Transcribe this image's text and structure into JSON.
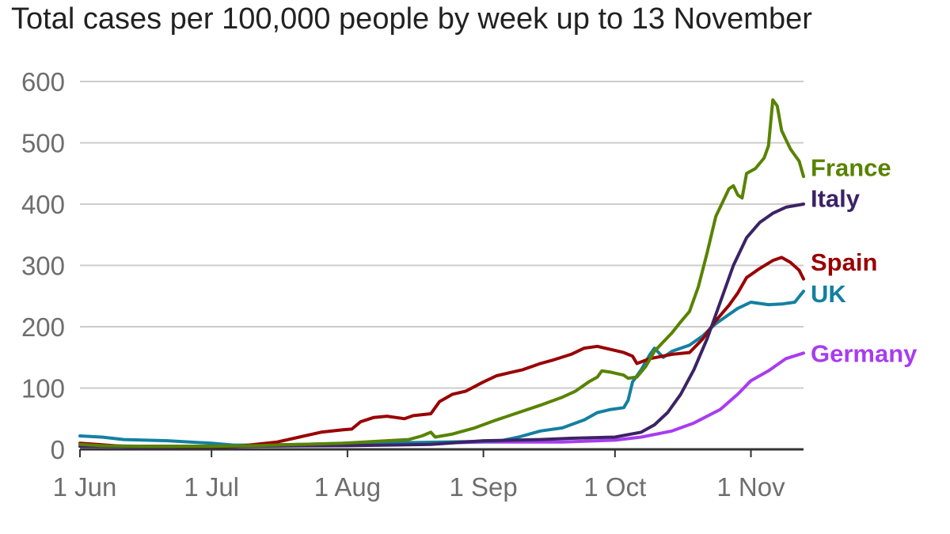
{
  "chart_data": {
    "type": "line",
    "title": "Total cases per 100,000 people by week up to 13 November",
    "xlabel": "",
    "ylabel": "",
    "ylim": [
      0,
      600
    ],
    "yticks": [
      0,
      100,
      200,
      300,
      400,
      500,
      600
    ],
    "grid": true,
    "x_unit": "day index from 1 Jun (0 = 1 Jun)",
    "xlim": [
      0,
      165
    ],
    "xticks": [
      {
        "day": 0,
        "label": "1 Jun"
      },
      {
        "day": 30,
        "label": "1 Jul"
      },
      {
        "day": 61,
        "label": "1 Aug"
      },
      {
        "day": 92,
        "label": "1 Sep"
      },
      {
        "day": 122,
        "label": "1 Oct"
      },
      {
        "day": 153,
        "label": "1 Nov"
      }
    ],
    "series": [
      {
        "name": "Germany",
        "color": "#a83cf0",
        "points": [
          [
            0,
            5
          ],
          [
            30,
            4
          ],
          [
            61,
            7
          ],
          [
            92,
            12
          ],
          [
            110,
            12
          ],
          [
            122,
            15
          ],
          [
            128,
            20
          ],
          [
            135,
            30
          ],
          [
            140,
            43
          ],
          [
            146,
            65
          ],
          [
            150,
            90
          ],
          [
            153,
            112
          ],
          [
            157,
            128
          ],
          [
            161,
            148
          ],
          [
            165,
            157
          ]
        ]
      },
      {
        "name": "UK",
        "color": "#1380a1",
        "points": [
          [
            0,
            22
          ],
          [
            5,
            20
          ],
          [
            10,
            16
          ],
          [
            20,
            14
          ],
          [
            30,
            10
          ],
          [
            35,
            7
          ],
          [
            40,
            7
          ],
          [
            50,
            8
          ],
          [
            61,
            10
          ],
          [
            75,
            11
          ],
          [
            92,
            13
          ],
          [
            96,
            14
          ],
          [
            100,
            20
          ],
          [
            105,
            30
          ],
          [
            110,
            35
          ],
          [
            115,
            48
          ],
          [
            118,
            60
          ],
          [
            121,
            65
          ],
          [
            124,
            68
          ],
          [
            125,
            80
          ],
          [
            126,
            110
          ],
          [
            128,
            130
          ],
          [
            130,
            155
          ],
          [
            131,
            165
          ],
          [
            133,
            150
          ],
          [
            135,
            160
          ],
          [
            139,
            170
          ],
          [
            142,
            185
          ],
          [
            145,
            205
          ],
          [
            148,
            220
          ],
          [
            150,
            230
          ],
          [
            153,
            240
          ],
          [
            157,
            236
          ],
          [
            160,
            237
          ],
          [
            163,
            240
          ],
          [
            165,
            258
          ]
        ]
      },
      {
        "name": "Spain",
        "color": "#990000",
        "points": [
          [
            0,
            10
          ],
          [
            10,
            5
          ],
          [
            20,
            5
          ],
          [
            30,
            4
          ],
          [
            36,
            5
          ],
          [
            40,
            8
          ],
          [
            45,
            12
          ],
          [
            50,
            20
          ],
          [
            55,
            28
          ],
          [
            60,
            32
          ],
          [
            62,
            33
          ],
          [
            64,
            45
          ],
          [
            67,
            52
          ],
          [
            70,
            54
          ],
          [
            72,
            52
          ],
          [
            74,
            50
          ],
          [
            76,
            55
          ],
          [
            80,
            58
          ],
          [
            82,
            78
          ],
          [
            85,
            90
          ],
          [
            88,
            95
          ],
          [
            92,
            110
          ],
          [
            95,
            120
          ],
          [
            98,
            125
          ],
          [
            101,
            130
          ],
          [
            105,
            140
          ],
          [
            108,
            146
          ],
          [
            112,
            155
          ],
          [
            115,
            165
          ],
          [
            118,
            168
          ],
          [
            121,
            163
          ],
          [
            124,
            158
          ],
          [
            126,
            152
          ],
          [
            127,
            140
          ],
          [
            130,
            148
          ],
          [
            135,
            155
          ],
          [
            139,
            158
          ],
          [
            142,
            180
          ],
          [
            145,
            210
          ],
          [
            148,
            235
          ],
          [
            150,
            255
          ],
          [
            152,
            280
          ],
          [
            155,
            295
          ],
          [
            158,
            308
          ],
          [
            160,
            313
          ],
          [
            162,
            305
          ],
          [
            164,
            292
          ],
          [
            165,
            278
          ]
        ]
      },
      {
        "name": "Italy",
        "color": "#3b2366",
        "points": [
          [
            0,
            5
          ],
          [
            30,
            5
          ],
          [
            61,
            6
          ],
          [
            80,
            8
          ],
          [
            92,
            14
          ],
          [
            105,
            16
          ],
          [
            112,
            18
          ],
          [
            122,
            20
          ],
          [
            128,
            28
          ],
          [
            131,
            40
          ],
          [
            134,
            60
          ],
          [
            137,
            90
          ],
          [
            140,
            130
          ],
          [
            143,
            180
          ],
          [
            146,
            240
          ],
          [
            149,
            300
          ],
          [
            152,
            345
          ],
          [
            155,
            370
          ],
          [
            158,
            385
          ],
          [
            161,
            395
          ],
          [
            165,
            400
          ]
        ]
      },
      {
        "name": "France",
        "color": "#588300",
        "points": [
          [
            0,
            8
          ],
          [
            5,
            6
          ],
          [
            15,
            5
          ],
          [
            30,
            5
          ],
          [
            40,
            6
          ],
          [
            50,
            8
          ],
          [
            60,
            10
          ],
          [
            70,
            14
          ],
          [
            75,
            16
          ],
          [
            78,
            22
          ],
          [
            80,
            28
          ],
          [
            81,
            20
          ],
          [
            85,
            25
          ],
          [
            90,
            35
          ],
          [
            95,
            48
          ],
          [
            100,
            60
          ],
          [
            105,
            72
          ],
          [
            110,
            85
          ],
          [
            113,
            95
          ],
          [
            116,
            110
          ],
          [
            118,
            118
          ],
          [
            119,
            128
          ],
          [
            121,
            126
          ],
          [
            124,
            121
          ],
          [
            125,
            116
          ],
          [
            127,
            118
          ],
          [
            129,
            135
          ],
          [
            131,
            160
          ],
          [
            133,
            175
          ],
          [
            135,
            190
          ],
          [
            137,
            208
          ],
          [
            139,
            225
          ],
          [
            141,
            265
          ],
          [
            143,
            320
          ],
          [
            145,
            380
          ],
          [
            147,
            410
          ],
          [
            148,
            425
          ],
          [
            149,
            430
          ],
          [
            150,
            415
          ],
          [
            151,
            410
          ],
          [
            152,
            450
          ],
          [
            154,
            458
          ],
          [
            156,
            475
          ],
          [
            157,
            495
          ],
          [
            158,
            570
          ],
          [
            159,
            560
          ],
          [
            160,
            520
          ],
          [
            161,
            505
          ],
          [
            162,
            490
          ],
          [
            163,
            480
          ],
          [
            164,
            470
          ],
          [
            165,
            445
          ]
        ]
      }
    ],
    "labels": [
      {
        "series": "France",
        "text": "France",
        "value": 460
      },
      {
        "series": "Italy",
        "text": "Italy",
        "value": 410
      },
      {
        "series": "Spain",
        "text": "Spain",
        "value": 306
      },
      {
        "series": "UK",
        "text": "UK",
        "value": 254
      },
      {
        "series": "Germany",
        "text": "Germany",
        "value": 157
      }
    ]
  }
}
